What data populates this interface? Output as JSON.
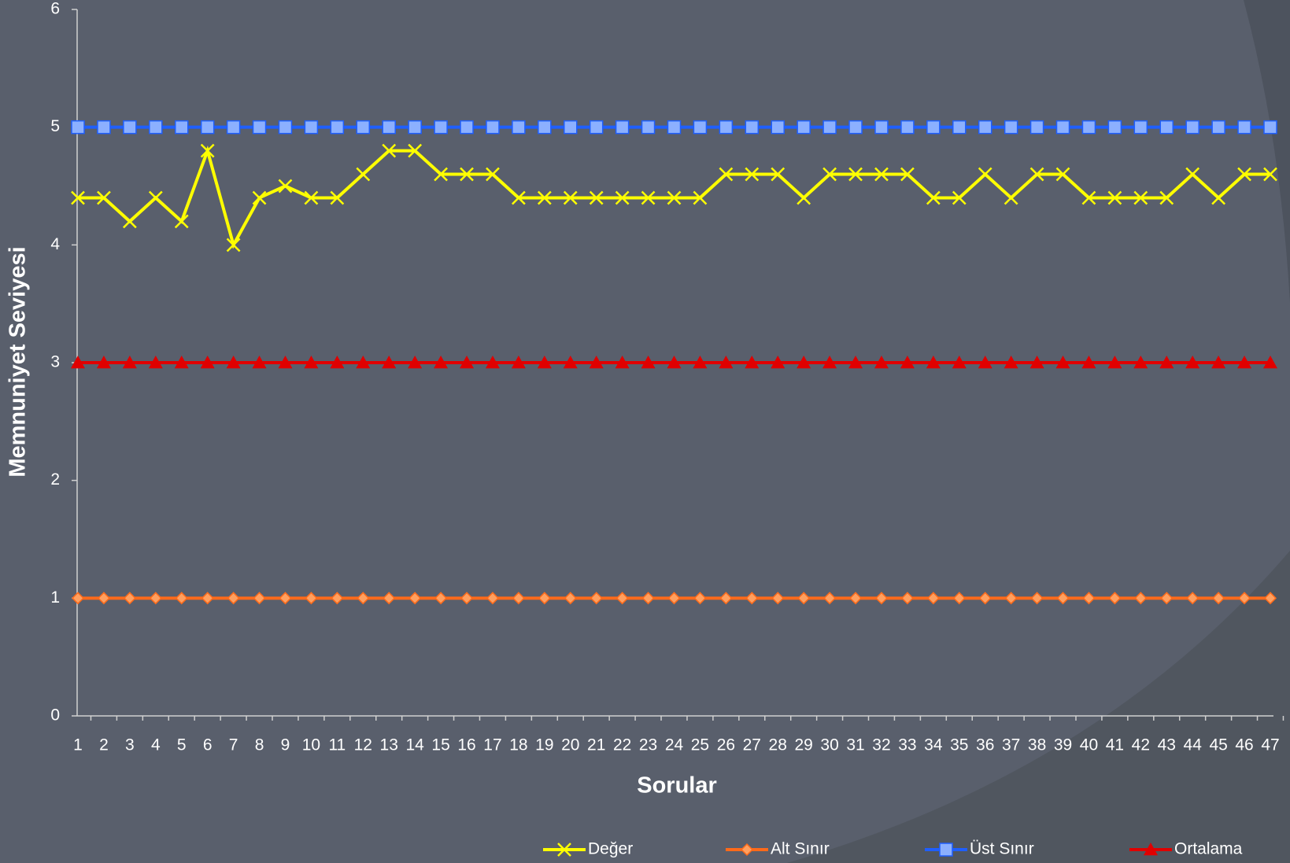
{
  "chart_data": {
    "type": "line",
    "xlabel": "Sorular",
    "ylabel": "Memnuniyet Seviyesi",
    "categories": [
      1,
      2,
      3,
      4,
      5,
      6,
      7,
      8,
      9,
      10,
      11,
      12,
      13,
      14,
      15,
      16,
      17,
      18,
      19,
      20,
      21,
      22,
      23,
      24,
      25,
      26,
      27,
      28,
      29,
      30,
      31,
      32,
      33,
      34,
      35,
      36,
      37,
      38,
      39,
      40,
      41,
      42,
      43,
      44,
      45,
      46,
      47
    ],
    "series": [
      {
        "name": "Değer",
        "color": "#ffff00",
        "marker": "x",
        "marker_color": "#ffff00",
        "values": [
          4.4,
          4.4,
          4.2,
          4.4,
          4.2,
          4.8,
          4.0,
          4.4,
          4.5,
          4.4,
          4.4,
          4.6,
          4.8,
          4.8,
          4.6,
          4.6,
          4.6,
          4.4,
          4.4,
          4.4,
          4.4,
          4.4,
          4.4,
          4.4,
          4.4,
          4.6,
          4.6,
          4.6,
          4.4,
          4.6,
          4.6,
          4.6,
          4.6,
          4.4,
          4.4,
          4.6,
          4.4,
          4.6,
          4.6,
          4.4,
          4.4,
          4.4,
          4.4,
          4.6,
          4.4,
          4.6,
          4.6
        ]
      },
      {
        "name": "Alt Sınır",
        "color": "#ff6a1a",
        "marker": "diamond",
        "marker_color": "#ffa060",
        "values": [
          1,
          1,
          1,
          1,
          1,
          1,
          1,
          1,
          1,
          1,
          1,
          1,
          1,
          1,
          1,
          1,
          1,
          1,
          1,
          1,
          1,
          1,
          1,
          1,
          1,
          1,
          1,
          1,
          1,
          1,
          1,
          1,
          1,
          1,
          1,
          1,
          1,
          1,
          1,
          1,
          1,
          1,
          1,
          1,
          1,
          1,
          1
        ]
      },
      {
        "name": "Üst Sınır",
        "color": "#1f5fff",
        "marker": "square",
        "marker_color": "#8cb0ff",
        "values": [
          5,
          5,
          5,
          5,
          5,
          5,
          5,
          5,
          5,
          5,
          5,
          5,
          5,
          5,
          5,
          5,
          5,
          5,
          5,
          5,
          5,
          5,
          5,
          5,
          5,
          5,
          5,
          5,
          5,
          5,
          5,
          5,
          5,
          5,
          5,
          5,
          5,
          5,
          5,
          5,
          5,
          5,
          5,
          5,
          5,
          5,
          5
        ]
      },
      {
        "name": "Ortalama",
        "color": "#e00000",
        "marker": "triangle",
        "marker_color": "#e00000",
        "values": [
          3,
          3,
          3,
          3,
          3,
          3,
          3,
          3,
          3,
          3,
          3,
          3,
          3,
          3,
          3,
          3,
          3,
          3,
          3,
          3,
          3,
          3,
          3,
          3,
          3,
          3,
          3,
          3,
          3,
          3,
          3,
          3,
          3,
          3,
          3,
          3,
          3,
          3,
          3,
          3,
          3,
          3,
          3,
          3,
          3,
          3,
          3
        ]
      }
    ],
    "ylim": [
      0,
      6
    ],
    "yticks": [
      0,
      1,
      2,
      3,
      4,
      5,
      6
    ],
    "legend": "bottom"
  }
}
